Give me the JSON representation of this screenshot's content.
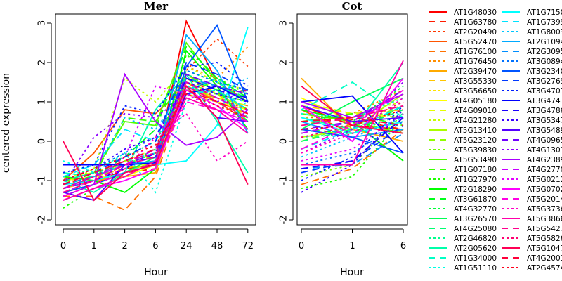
{
  "chart_data": [
    {
      "type": "line",
      "title": "Mer",
      "xlabel": "Hour",
      "ylabel": "centered expression",
      "x": [
        "0",
        "1",
        "2",
        "6",
        "24",
        "48",
        "72"
      ],
      "ylim": [
        -2,
        3
      ],
      "yticks": [
        "-2",
        "-1",
        "0",
        "1",
        "2",
        "3"
      ],
      "grid": false,
      "series_ref": "series"
    },
    {
      "type": "line",
      "title": "Cot",
      "xlabel": "Hour",
      "ylabel": "",
      "x": [
        "0",
        "1",
        "6"
      ],
      "ylim": [
        -2,
        3
      ],
      "yticks": [
        "-2",
        "-1",
        "0",
        "1",
        "2",
        "3"
      ],
      "grid": false,
      "series_ref": "series"
    }
  ],
  "legend": {
    "placement": "right",
    "columns": 2
  },
  "series": [
    {
      "name": "AT1G48030",
      "color": "#FF0000",
      "lty": "solid",
      "mer": [
        -1.3,
        -1.1,
        -0.7,
        -0.6,
        3.05,
        1.5,
        1.0
      ],
      "cot": [
        0.9,
        0.4,
        0.3
      ]
    },
    {
      "name": "AT1G63780",
      "color": "#FF1C00",
      "lty": "dashed",
      "mer": [
        -1.2,
        -1.0,
        -0.8,
        -0.7,
        1.6,
        1.2,
        1.3
      ],
      "cot": [
        0.5,
        0.55,
        0.3
      ]
    },
    {
      "name": "AT2G20490",
      "color": "#FF3900",
      "lty": "dotted",
      "mer": [
        -1.1,
        -0.9,
        -0.5,
        -0.6,
        1.8,
        2.6,
        1.9
      ],
      "cot": [
        0.6,
        0.6,
        1.1
      ]
    },
    {
      "name": "AT5G52470",
      "color": "#FF5500",
      "lty": "solid",
      "mer": [
        -1.0,
        -0.3,
        0.8,
        0.7,
        1.4,
        1.0,
        0.5
      ],
      "cot": [
        0.8,
        0.2,
        0.5
      ]
    },
    {
      "name": "AT1G76100",
      "color": "#FF7100",
      "lty": "dashed",
      "mer": [
        -1.4,
        -1.4,
        -1.75,
        -0.9,
        1.3,
        1.1,
        0.9
      ],
      "cot": [
        -1.1,
        -0.7,
        0.3
      ]
    },
    {
      "name": "AT1G76450",
      "color": "#FF8E00",
      "lty": "dotted",
      "mer": [
        -1.2,
        -1.0,
        -0.6,
        -0.3,
        1.9,
        1.6,
        2.4
      ],
      "cot": [
        0.4,
        0.7,
        1.3
      ]
    },
    {
      "name": "AT2G39470",
      "color": "#FFAA00",
      "lty": "solid",
      "mer": [
        -1.2,
        -1.0,
        -0.9,
        -0.8,
        1.5,
        1.0,
        0.7
      ],
      "cot": [
        1.6,
        0.3,
        0.0
      ]
    },
    {
      "name": "AT3G55330",
      "color": "#FFC600",
      "lty": "dashed",
      "mer": [
        -1.1,
        -0.9,
        -0.7,
        -0.5,
        1.7,
        1.2,
        0.6
      ],
      "cot": [
        0.9,
        0.7,
        0.8
      ]
    },
    {
      "name": "AT3G56650",
      "color": "#FFE300",
      "lty": "dotted",
      "mer": [
        -1.0,
        -0.8,
        -0.5,
        -0.2,
        1.6,
        1.4,
        1.2
      ],
      "cot": [
        1.0,
        0.6,
        0.9
      ]
    },
    {
      "name": "AT4G05180",
      "color": "#FFFF00",
      "lty": "solid",
      "mer": [
        -1.0,
        -0.9,
        -0.9,
        -0.6,
        1.2,
        1.0,
        0.8
      ],
      "cot": [
        1.1,
        0.5,
        0.2
      ]
    },
    {
      "name": "AT4G09010",
      "color": "#E3FF00",
      "lty": "dashed",
      "mer": [
        -0.9,
        -0.8,
        -0.6,
        -0.3,
        1.4,
        1.1,
        0.9
      ],
      "cot": [
        1.0,
        0.7,
        0.6
      ]
    },
    {
      "name": "AT4G21280",
      "color": "#C6FF00",
      "lty": "dotted",
      "mer": [
        -1.1,
        -0.7,
        1.6,
        1.0,
        1.9,
        1.5,
        1.3
      ],
      "cot": [
        0.6,
        0.7,
        1.0
      ]
    },
    {
      "name": "AT5G13410",
      "color": "#AAFF00",
      "lty": "solid",
      "mer": [
        -1.3,
        -1.1,
        -0.8,
        -0.5,
        1.5,
        1.2,
        0.8
      ],
      "cot": [
        0.1,
        0.3,
        1.2
      ]
    },
    {
      "name": "AT5G23120",
      "color": "#8EFF00",
      "lty": "dashed",
      "mer": [
        -1.2,
        -1.0,
        -0.5,
        -0.4,
        1.4,
        1.1,
        0.7
      ],
      "cot": [
        0.0,
        0.4,
        0.9
      ]
    },
    {
      "name": "AT5G39830",
      "color": "#71FF00",
      "lty": "dotted",
      "mer": [
        -1.4,
        -1.1,
        -0.8,
        -0.4,
        1.3,
        1.2,
        1.0
      ],
      "cot": [
        -0.9,
        -0.6,
        0.7
      ]
    },
    {
      "name": "AT5G53490",
      "color": "#55FF00",
      "lty": "solid",
      "mer": [
        -1.0,
        -0.8,
        0.5,
        0.4,
        2.5,
        1.5,
        1.0
      ],
      "cot": [
        0.7,
        0.5,
        0.2
      ]
    },
    {
      "name": "AT1G07180",
      "color": "#39FF00",
      "lty": "dashed",
      "mer": [
        -1.0,
        -0.9,
        0.6,
        0.5,
        1.7,
        1.3,
        0.8
      ],
      "cot": [
        0.5,
        0.7,
        0.4
      ]
    },
    {
      "name": "AT1G27970",
      "color": "#1CFF00",
      "lty": "dotted",
      "mer": [
        -1.7,
        -1.2,
        -0.9,
        -0.5,
        2.2,
        1.6,
        1.2
      ],
      "cot": [
        -1.2,
        -0.9,
        0.6
      ]
    },
    {
      "name": "AT2G18290",
      "color": "#00FF00",
      "lty": "solid",
      "mer": [
        -0.9,
        -1.0,
        -1.3,
        -0.7,
        2.3,
        1.4,
        0.3
      ],
      "cot": [
        0.8,
        0.5,
        -0.5
      ]
    },
    {
      "name": "AT3G61870",
      "color": "#00FF1C",
      "lty": "dashed",
      "mer": [
        -1.1,
        -0.9,
        -0.4,
        0.3,
        2.4,
        1.6,
        1.1
      ],
      "cot": [
        0.3,
        0.2,
        0.9
      ]
    },
    {
      "name": "AT4G32770",
      "color": "#00FF39",
      "lty": "dotted",
      "mer": [
        -1.2,
        -0.9,
        -0.6,
        -0.2,
        1.8,
        1.5,
        1.0
      ],
      "cot": [
        0.2,
        0.5,
        1.4
      ]
    },
    {
      "name": "AT3G26570",
      "color": "#00FF55",
      "lty": "solid",
      "mer": [
        -1.1,
        -1.0,
        -0.8,
        -0.4,
        1.6,
        1.3,
        0.5
      ],
      "cot": [
        0.3,
        1.0,
        1.6
      ]
    },
    {
      "name": "AT4G25080",
      "color": "#00FF71",
      "lty": "dashed",
      "mer": [
        -1.0,
        -0.8,
        -0.6,
        -0.3,
        1.7,
        1.4,
        1.1
      ],
      "cot": [
        0.0,
        0.3,
        0.8
      ]
    },
    {
      "name": "AT2G46820",
      "color": "#00FF8E",
      "lty": "dotted",
      "mer": [
        -0.9,
        -0.7,
        -0.4,
        0.0,
        1.5,
        1.2,
        1.0
      ],
      "cot": [
        0.1,
        0.2,
        0.7
      ]
    },
    {
      "name": "AT2G05620",
      "color": "#00FFAA",
      "lty": "solid",
      "mer": [
        -1.0,
        -1.3,
        -0.8,
        0.8,
        1.7,
        0.5,
        -0.8
      ],
      "cot": [
        0.6,
        0.3,
        2.0
      ]
    },
    {
      "name": "AT1G34000",
      "color": "#00FFC6",
      "lty": "dashed",
      "mer": [
        -0.8,
        -0.9,
        -0.5,
        -0.3,
        1.3,
        1.6,
        0.6
      ],
      "cot": [
        0.8,
        1.5,
        0.6
      ]
    },
    {
      "name": "AT1G51110",
      "color": "#00FFE3",
      "lty": "dotted",
      "mer": [
        -0.5,
        -0.8,
        -0.3,
        -1.3,
        1.0,
        1.5,
        0.9
      ],
      "cot": [
        0.7,
        0.6,
        1.1
      ]
    },
    {
      "name": "AT1G7150",
      "color": "#00FFFF",
      "lty": "solid",
      "mer": [
        -1.1,
        -1.0,
        -0.8,
        -0.6,
        -0.5,
        0.4,
        2.9
      ],
      "cot": [
        0.6,
        0.2,
        0.5
      ]
    },
    {
      "name": "AT1G7399",
      "color": "#00E3FF",
      "lty": "dashed",
      "mer": [
        -0.9,
        -0.6,
        0.3,
        0.0,
        1.2,
        1.3,
        0.8
      ],
      "cot": [
        -0.2,
        0.3,
        0.9
      ]
    },
    {
      "name": "AT1G8003",
      "color": "#00C6FF",
      "lty": "dotted",
      "mer": [
        -1.0,
        -0.8,
        0.6,
        0.3,
        1.4,
        1.2,
        1.6
      ],
      "cot": [
        -0.4,
        0.1,
        0.6
      ]
    },
    {
      "name": "AT2G1094",
      "color": "#00AAFF",
      "lty": "solid",
      "mer": [
        -1.2,
        -0.9,
        -0.6,
        -0.5,
        2.7,
        1.8,
        0.2
      ],
      "cot": [
        0.5,
        0.1,
        0.3
      ]
    },
    {
      "name": "AT2G3095",
      "color": "#008EFF",
      "lty": "dashed",
      "mer": [
        -1.1,
        -0.9,
        -0.5,
        -0.2,
        1.6,
        1.4,
        1.2
      ],
      "cot": [
        -0.7,
        -0.6,
        0.2
      ]
    },
    {
      "name": "AT3G0894",
      "color": "#0071FF",
      "lty": "dotted",
      "mer": [
        -1.0,
        -0.7,
        -0.3,
        0.1,
        1.8,
        1.5,
        1.3
      ],
      "cot": [
        -0.6,
        -0.3,
        0.5
      ]
    },
    {
      "name": "AT3G2340",
      "color": "#0055FF",
      "lty": "solid",
      "mer": [
        -1.3,
        -1.1,
        -0.8,
        -0.6,
        1.9,
        2.95,
        1.0
      ],
      "cot": [
        0.3,
        0.1,
        -0.3
      ]
    },
    {
      "name": "AT3G2769",
      "color": "#0039FF",
      "lty": "dashed",
      "mer": [
        -1.1,
        -0.8,
        -0.4,
        0.0,
        2.0,
        1.7,
        1.3
      ],
      "cot": [
        -0.8,
        -0.5,
        0.4
      ]
    },
    {
      "name": "AT3G4707",
      "color": "#001CFF",
      "lty": "dotted",
      "mer": [
        -0.8,
        -0.6,
        0.9,
        0.7,
        1.9,
        2.0,
        1.4
      ],
      "cot": [
        -1.0,
        -0.4,
        0.9
      ]
    },
    {
      "name": "AT3G4747",
      "color": "#0000FF",
      "lty": "solid",
      "mer": [
        -0.6,
        -0.6,
        -0.6,
        -0.55,
        1.2,
        1.4,
        1.0
      ],
      "cot": [
        1.0,
        1.15,
        -0.3
      ]
    },
    {
      "name": "AT3G4786",
      "color": "#1C00FF",
      "lty": "dashed",
      "mer": [
        -1.2,
        -1.0,
        -0.7,
        -0.3,
        1.6,
        1.3,
        1.1
      ],
      "cot": [
        -0.7,
        -0.5,
        0.6
      ]
    },
    {
      "name": "AT3G5347",
      "color": "#3900FF",
      "lty": "dotted",
      "mer": [
        -1.0,
        -0.7,
        -0.2,
        0.1,
        1.5,
        1.2,
        1.0
      ],
      "cot": [
        -1.3,
        -0.6,
        0.8
      ]
    },
    {
      "name": "AT3G5489",
      "color": "#5500FF",
      "lty": "solid",
      "mer": [
        -1.3,
        -1.5,
        -0.6,
        -0.4,
        1.4,
        0.6,
        0.5
      ],
      "cot": [
        0.9,
        0.5,
        0.6
      ]
    },
    {
      "name": "AT4G0965",
      "color": "#7100FF",
      "lty": "dashed",
      "mer": [
        -1.2,
        -1.0,
        -0.6,
        -0.3,
        1.7,
        1.4,
        1.2
      ],
      "cot": [
        0.3,
        0.5,
        1.3
      ]
    },
    {
      "name": "AT4G1301",
      "color": "#8E00FF",
      "lty": "dotted",
      "mer": [
        -1.1,
        0.1,
        0.7,
        0.6,
        1.2,
        1.0,
        1.3
      ],
      "cot": [
        -0.3,
        0.3,
        1.5
      ]
    },
    {
      "name": "AT4G2389",
      "color": "#AA00FF",
      "lty": "solid",
      "mer": [
        -1.4,
        -1.1,
        1.7,
        0.5,
        -0.1,
        0.1,
        0.8
      ],
      "cot": [
        1.0,
        0.6,
        1.2
      ]
    },
    {
      "name": "AT4G2770",
      "color": "#C600FF",
      "lty": "dashed",
      "mer": [
        -1.2,
        -0.9,
        -0.6,
        -0.2,
        1.5,
        1.1,
        0.7
      ],
      "cot": [
        0.2,
        0.5,
        1.2
      ]
    },
    {
      "name": "AT5G0212",
      "color": "#E300FF",
      "lty": "dotted",
      "mer": [
        -1.3,
        -1.0,
        -0.4,
        1.4,
        1.2,
        0.8,
        0.6
      ],
      "cot": [
        -0.5,
        -0.2,
        0.7
      ]
    },
    {
      "name": "AT5G0702",
      "color": "#FF00FF",
      "lty": "solid",
      "mer": [
        -1.5,
        -1.2,
        -1.0,
        -0.7,
        1.3,
        0.9,
        0.3
      ],
      "cot": [
        0.9,
        0.0,
        1.6
      ]
    },
    {
      "name": "AT5G2014",
      "color": "#FF00E3",
      "lty": "dashed",
      "mer": [
        -1.4,
        -1.1,
        -0.8,
        -0.6,
        1.0,
        0.8,
        0.5
      ],
      "cot": [
        -0.2,
        0.4,
        1.3
      ]
    },
    {
      "name": "AT5G3736",
      "color": "#FF00C6",
      "lty": "dotted",
      "mer": [
        -1.2,
        -1.0,
        -0.7,
        0.1,
        0.7,
        -0.5,
        0.0
      ],
      "cot": [
        -0.3,
        0.2,
        1.1
      ]
    },
    {
      "name": "AT5G3866",
      "color": "#FF00AA",
      "lty": "solid",
      "mer": [
        -1.5,
        -1.2,
        -0.9,
        -0.5,
        1.1,
        0.8,
        0.2
      ],
      "cot": [
        -0.6,
        -0.6,
        2.05
      ]
    },
    {
      "name": "AT5G5427",
      "color": "#FF008E",
      "lty": "dashed",
      "mer": [
        -1.3,
        -1.0,
        -0.6,
        -0.4,
        1.4,
        1.0,
        0.6
      ],
      "cot": [
        0.4,
        0.6,
        0.9
      ]
    },
    {
      "name": "AT5G5826",
      "color": "#FF0071",
      "lty": "dotted",
      "mer": [
        -1.2,
        -0.9,
        -0.5,
        -0.3,
        1.5,
        1.1,
        0.8
      ],
      "cot": [
        0.1,
        0.4,
        1.0
      ]
    },
    {
      "name": "AT5G1047",
      "color": "#FF0055",
      "lty": "solid",
      "mer": [
        0.0,
        -1.5,
        -0.8,
        -0.6,
        1.4,
        0.6,
        -1.1
      ],
      "cot": [
        1.4,
        0.4,
        0.2
      ]
    },
    {
      "name": "AT4G2001",
      "color": "#FF0039",
      "lty": "dashed",
      "mer": [
        -1.1,
        -0.8,
        -0.5,
        -0.2,
        1.3,
        1.0,
        0.7
      ],
      "cot": [
        0.5,
        0.6,
        0.4
      ]
    },
    {
      "name": "AT2G4574",
      "color": "#FF001C",
      "lty": "dotted",
      "mer": [
        -1.0,
        -0.7,
        -0.4,
        -0.1,
        1.2,
        0.9,
        0.6
      ],
      "cot": [
        0.3,
        0.4,
        0.8
      ]
    }
  ]
}
